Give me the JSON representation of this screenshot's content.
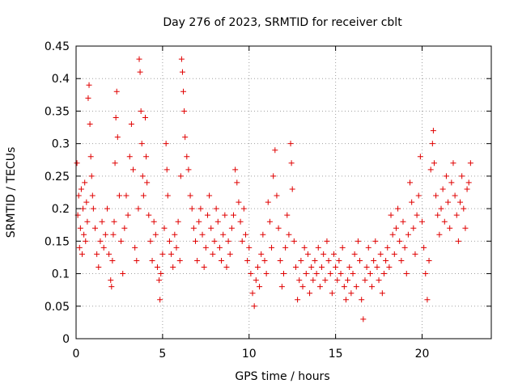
{
  "chart_data": {
    "type": "scatter",
    "title": "Day 276 of 2023, SRMTID for receiver cblt",
    "xlabel": "GPS time / hours",
    "ylabel": "SRMTID / TECUs",
    "xlim": [
      0,
      24
    ],
    "ylim": [
      0,
      0.45
    ],
    "xticks": [
      "0",
      "5",
      "10",
      "15",
      "20"
    ],
    "xtick_values": [
      0,
      5,
      10,
      15,
      20
    ],
    "yticks": [
      "0",
      "0.05",
      "0.1",
      "0.15",
      "0.2",
      "0.25",
      "0.3",
      "0.35",
      "0.4",
      "0.45"
    ],
    "ytick_values": [
      0,
      0.05,
      0.1,
      0.15,
      0.2,
      0.25,
      0.3,
      0.35,
      0.4,
      0.45
    ],
    "grid": true,
    "marker": "+",
    "color": "#e00000",
    "series": [
      {
        "points": [
          [
            0.05,
            0.27
          ],
          [
            0.1,
            0.19
          ],
          [
            0.15,
            0.22
          ],
          [
            0.2,
            0.14
          ],
          [
            0.25,
            0.17
          ],
          [
            0.3,
            0.23
          ],
          [
            0.35,
            0.13
          ],
          [
            0.4,
            0.2
          ],
          [
            0.45,
            0.16
          ],
          [
            0.5,
            0.24
          ],
          [
            0.55,
            0.15
          ],
          [
            0.6,
            0.21
          ],
          [
            0.65,
            0.18
          ],
          [
            0.7,
            0.37
          ],
          [
            0.75,
            0.39
          ],
          [
            0.8,
            0.33
          ],
          [
            0.85,
            0.28
          ],
          [
            0.9,
            0.25
          ],
          [
            0.95,
            0.22
          ],
          [
            1.0,
            0.2
          ],
          [
            1.1,
            0.17
          ],
          [
            1.2,
            0.13
          ],
          [
            1.3,
            0.11
          ],
          [
            1.4,
            0.15
          ],
          [
            1.5,
            0.18
          ],
          [
            1.6,
            0.14
          ],
          [
            1.7,
            0.16
          ],
          [
            1.8,
            0.2
          ],
          [
            1.9,
            0.13
          ],
          [
            2.0,
            0.09
          ],
          [
            2.05,
            0.08
          ],
          [
            2.1,
            0.12
          ],
          [
            2.15,
            0.16
          ],
          [
            2.2,
            0.18
          ],
          [
            2.25,
            0.27
          ],
          [
            2.3,
            0.34
          ],
          [
            2.35,
            0.38
          ],
          [
            2.4,
            0.31
          ],
          [
            2.5,
            0.22
          ],
          [
            2.6,
            0.15
          ],
          [
            2.7,
            0.1
          ],
          [
            2.8,
            0.17
          ],
          [
            2.9,
            0.22
          ],
          [
            3.0,
            0.19
          ],
          [
            3.1,
            0.28
          ],
          [
            3.2,
            0.33
          ],
          [
            3.3,
            0.26
          ],
          [
            3.4,
            0.14
          ],
          [
            3.5,
            0.12
          ],
          [
            3.6,
            0.2
          ],
          [
            3.65,
            0.43
          ],
          [
            3.7,
            0.41
          ],
          [
            3.75,
            0.35
          ],
          [
            3.8,
            0.3
          ],
          [
            3.85,
            0.25
          ],
          [
            3.9,
            0.22
          ],
          [
            4.0,
            0.34
          ],
          [
            4.05,
            0.28
          ],
          [
            4.1,
            0.24
          ],
          [
            4.2,
            0.19
          ],
          [
            4.3,
            0.15
          ],
          [
            4.4,
            0.12
          ],
          [
            4.5,
            0.18
          ],
          [
            4.6,
            0.16
          ],
          [
            4.7,
            0.11
          ],
          [
            4.8,
            0.09
          ],
          [
            4.85,
            0.06
          ],
          [
            4.9,
            0.1
          ],
          [
            5.0,
            0.13
          ],
          [
            5.1,
            0.17
          ],
          [
            5.2,
            0.3
          ],
          [
            5.25,
            0.26
          ],
          [
            5.3,
            0.22
          ],
          [
            5.4,
            0.15
          ],
          [
            5.5,
            0.13
          ],
          [
            5.6,
            0.11
          ],
          [
            5.7,
            0.16
          ],
          [
            5.8,
            0.14
          ],
          [
            5.9,
            0.18
          ],
          [
            6.0,
            0.12
          ],
          [
            6.05,
            0.25
          ],
          [
            6.1,
            0.43
          ],
          [
            6.15,
            0.41
          ],
          [
            6.2,
            0.38
          ],
          [
            6.25,
            0.35
          ],
          [
            6.3,
            0.31
          ],
          [
            6.4,
            0.28
          ],
          [
            6.5,
            0.26
          ],
          [
            6.6,
            0.22
          ],
          [
            6.7,
            0.2
          ],
          [
            6.8,
            0.17
          ],
          [
            6.9,
            0.15
          ],
          [
            7.0,
            0.12
          ],
          [
            7.1,
            0.18
          ],
          [
            7.2,
            0.2
          ],
          [
            7.3,
            0.16
          ],
          [
            7.4,
            0.11
          ],
          [
            7.5,
            0.14
          ],
          [
            7.6,
            0.19
          ],
          [
            7.7,
            0.22
          ],
          [
            7.8,
            0.17
          ],
          [
            7.9,
            0.13
          ],
          [
            8.0,
            0.15
          ],
          [
            8.1,
            0.2
          ],
          [
            8.2,
            0.18
          ],
          [
            8.3,
            0.14
          ],
          [
            8.4,
            0.12
          ],
          [
            8.5,
            0.16
          ],
          [
            8.6,
            0.19
          ],
          [
            8.7,
            0.11
          ],
          [
            8.8,
            0.15
          ],
          [
            8.9,
            0.13
          ],
          [
            9.0,
            0.17
          ],
          [
            9.1,
            0.19
          ],
          [
            9.2,
            0.26
          ],
          [
            9.3,
            0.24
          ],
          [
            9.4,
            0.21
          ],
          [
            9.5,
            0.18
          ],
          [
            9.6,
            0.15
          ],
          [
            9.7,
            0.2
          ],
          [
            9.8,
            0.16
          ],
          [
            9.9,
            0.12
          ],
          [
            10.0,
            0.14
          ],
          [
            10.1,
            0.1
          ],
          [
            10.2,
            0.07
          ],
          [
            10.3,
            0.05
          ],
          [
            10.4,
            0.09
          ],
          [
            10.5,
            0.11
          ],
          [
            10.6,
            0.08
          ],
          [
            10.7,
            0.13
          ],
          [
            10.8,
            0.16
          ],
          [
            10.9,
            0.12
          ],
          [
            11.0,
            0.1
          ],
          [
            11.1,
            0.21
          ],
          [
            11.2,
            0.18
          ],
          [
            11.3,
            0.14
          ],
          [
            11.4,
            0.25
          ],
          [
            11.5,
            0.29
          ],
          [
            11.6,
            0.22
          ],
          [
            11.7,
            0.17
          ],
          [
            11.8,
            0.12
          ],
          [
            11.9,
            0.08
          ],
          [
            12.0,
            0.1
          ],
          [
            12.1,
            0.14
          ],
          [
            12.2,
            0.19
          ],
          [
            12.3,
            0.16
          ],
          [
            12.4,
            0.3
          ],
          [
            12.45,
            0.27
          ],
          [
            12.5,
            0.23
          ],
          [
            12.6,
            0.15
          ],
          [
            12.7,
            0.11
          ],
          [
            12.8,
            0.06
          ],
          [
            12.9,
            0.09
          ],
          [
            13.0,
            0.12
          ],
          [
            13.1,
            0.08
          ],
          [
            13.2,
            0.14
          ],
          [
            13.3,
            0.1
          ],
          [
            13.4,
            0.13
          ],
          [
            13.5,
            0.07
          ],
          [
            13.6,
            0.11
          ],
          [
            13.7,
            0.09
          ],
          [
            13.8,
            0.12
          ],
          [
            13.9,
            0.1
          ],
          [
            14.0,
            0.14
          ],
          [
            14.1,
            0.08
          ],
          [
            14.2,
            0.11
          ],
          [
            14.3,
            0.13
          ],
          [
            14.4,
            0.09
          ],
          [
            14.5,
            0.15
          ],
          [
            14.6,
            0.12
          ],
          [
            14.7,
            0.1
          ],
          [
            14.8,
            0.07
          ],
          [
            14.9,
            0.13
          ],
          [
            15.0,
            0.11
          ],
          [
            15.1,
            0.09
          ],
          [
            15.2,
            0.12
          ],
          [
            15.3,
            0.1
          ],
          [
            15.4,
            0.14
          ],
          [
            15.5,
            0.08
          ],
          [
            15.6,
            0.06
          ],
          [
            15.7,
            0.09
          ],
          [
            15.8,
            0.11
          ],
          [
            15.9,
            0.07
          ],
          [
            16.0,
            0.1
          ],
          [
            16.1,
            0.13
          ],
          [
            16.2,
            0.08
          ],
          [
            16.3,
            0.15
          ],
          [
            16.4,
            0.12
          ],
          [
            16.5,
            0.06
          ],
          [
            16.6,
            0.03
          ],
          [
            16.7,
            0.09
          ],
          [
            16.8,
            0.11
          ],
          [
            16.9,
            0.14
          ],
          [
            17.0,
            0.1
          ],
          [
            17.1,
            0.08
          ],
          [
            17.2,
            0.12
          ],
          [
            17.3,
            0.15
          ],
          [
            17.4,
            0.11
          ],
          [
            17.5,
            0.09
          ],
          [
            17.6,
            0.13
          ],
          [
            17.7,
            0.07
          ],
          [
            17.8,
            0.1
          ],
          [
            17.9,
            0.12
          ],
          [
            18.0,
            0.14
          ],
          [
            18.1,
            0.11
          ],
          [
            18.2,
            0.19
          ],
          [
            18.3,
            0.16
          ],
          [
            18.4,
            0.13
          ],
          [
            18.5,
            0.17
          ],
          [
            18.6,
            0.2
          ],
          [
            18.7,
            0.15
          ],
          [
            18.8,
            0.12
          ],
          [
            18.9,
            0.18
          ],
          [
            19.0,
            0.14
          ],
          [
            19.1,
            0.1
          ],
          [
            19.2,
            0.16
          ],
          [
            19.3,
            0.24
          ],
          [
            19.4,
            0.21
          ],
          [
            19.5,
            0.17
          ],
          [
            19.6,
            0.13
          ],
          [
            19.7,
            0.19
          ],
          [
            19.8,
            0.22
          ],
          [
            19.9,
            0.28
          ],
          [
            20.0,
            0.18
          ],
          [
            20.1,
            0.14
          ],
          [
            20.2,
            0.1
          ],
          [
            20.3,
            0.06
          ],
          [
            20.4,
            0.12
          ],
          [
            20.5,
            0.26
          ],
          [
            20.6,
            0.3
          ],
          [
            20.65,
            0.32
          ],
          [
            20.7,
            0.27
          ],
          [
            20.8,
            0.22
          ],
          [
            20.9,
            0.19
          ],
          [
            21.0,
            0.16
          ],
          [
            21.1,
            0.2
          ],
          [
            21.2,
            0.23
          ],
          [
            21.3,
            0.18
          ],
          [
            21.4,
            0.25
          ],
          [
            21.5,
            0.21
          ],
          [
            21.6,
            0.17
          ],
          [
            21.7,
            0.24
          ],
          [
            21.8,
            0.27
          ],
          [
            21.9,
            0.22
          ],
          [
            22.0,
            0.19
          ],
          [
            22.1,
            0.15
          ],
          [
            22.2,
            0.21
          ],
          [
            22.3,
            0.25
          ],
          [
            22.4,
            0.2
          ],
          [
            22.5,
            0.17
          ],
          [
            22.6,
            0.23
          ],
          [
            22.7,
            0.24
          ],
          [
            22.8,
            0.27
          ]
        ]
      }
    ]
  }
}
